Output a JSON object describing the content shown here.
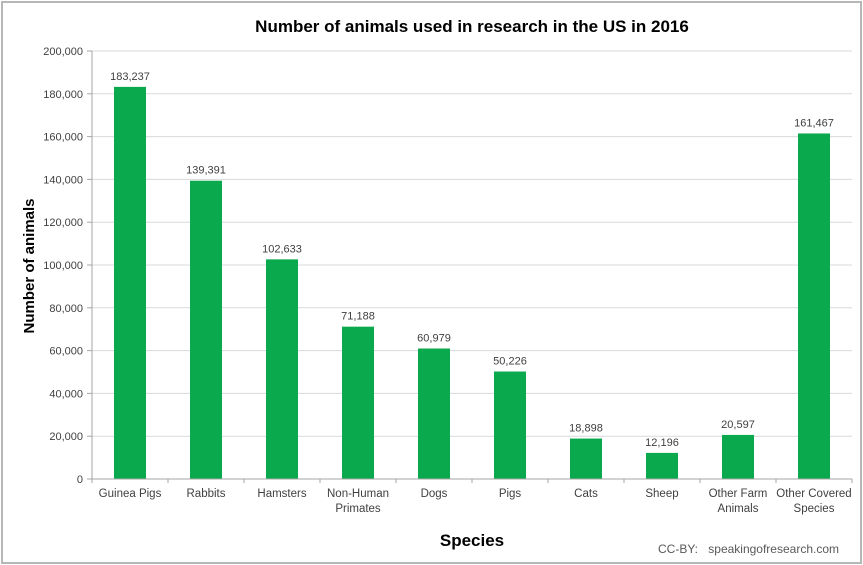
{
  "figure": {
    "attribution_label": "CC-BY:",
    "attribution_source": "speakingofresearch.com"
  },
  "chart_data": {
    "type": "bar",
    "title": "Number of animals used in research in the US in 2016",
    "xlabel": "Species",
    "ylabel": "Number of animals",
    "categories": [
      "Guinea Pigs",
      "Rabbits",
      "Hamsters",
      "Non-Human Primates",
      "Dogs",
      "Pigs",
      "Cats",
      "Sheep",
      "Other Farm Animals",
      "Other Covered Species"
    ],
    "category_lines": [
      [
        "Guinea Pigs"
      ],
      [
        "Rabbits"
      ],
      [
        "Hamsters"
      ],
      [
        "Non-Human",
        "Primates"
      ],
      [
        "Dogs"
      ],
      [
        "Pigs"
      ],
      [
        "Cats"
      ],
      [
        "Sheep"
      ],
      [
        "Other Farm",
        "Animals"
      ],
      [
        "Other Covered",
        "Species"
      ]
    ],
    "values": [
      183237,
      139391,
      102633,
      71188,
      60979,
      50226,
      18898,
      12196,
      20597,
      161467
    ],
    "value_labels": [
      "183,237",
      "139,391",
      "102,633",
      "71,188",
      "60,979",
      "50,226",
      "18,898",
      "12,196",
      "20,597",
      "161,467"
    ],
    "ylim": [
      0,
      200000
    ],
    "ytick_interval": 20000,
    "ytick_labels": [
      "0",
      "20,000",
      "40,000",
      "60,000",
      "80,000",
      "100,000",
      "120,000",
      "140,000",
      "160,000",
      "180,000",
      "200,000"
    ],
    "grid": true,
    "legend": "none",
    "colors": {
      "bar": "#0ba94d",
      "gridline": "#d9d9d9",
      "axis": "#a6a6a6",
      "label_text": "#404040",
      "attribution_text": "#595959"
    }
  }
}
